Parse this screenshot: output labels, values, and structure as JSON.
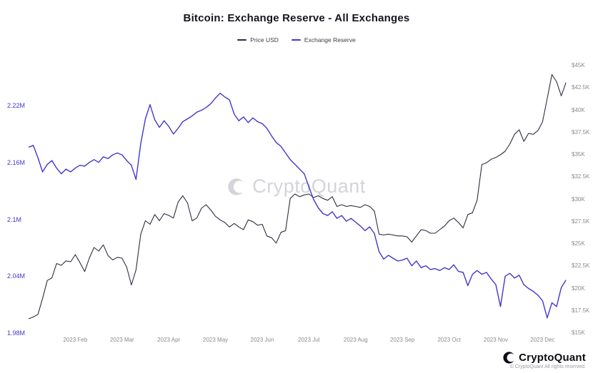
{
  "title": "Bitcoin: Exchange Reserve - All Exchanges",
  "legend": {
    "items": [
      {
        "label": "Price USD",
        "color": "#2e2e40"
      },
      {
        "label": "Exchange Reserve",
        "color": "#4338ca"
      }
    ]
  },
  "watermark": "CryptoQuant",
  "footer": {
    "brand": "CryptoQuant",
    "copyright": "© CryptoQuant All rights reserved."
  },
  "chart_data": {
    "type": "line",
    "title": "Bitcoin: Exchange Reserve - All Exchanges",
    "x_unit": "months since 2023-01-01",
    "x_start": 0,
    "x_step": 0.1,
    "x_tick_positions": [
      1,
      2,
      3,
      4,
      5,
      6,
      7,
      8,
      9,
      10,
      11
    ],
    "x_tick_labels": [
      "2023 Feb",
      "2023 Mar",
      "2023 Apr",
      "2023 May",
      "2023 Jun",
      "2023 Jul",
      "2023 Aug",
      "2023 Sep",
      "2023 Oct",
      "2023 Nov",
      "2023 Dec"
    ],
    "grid": false,
    "legend_position": "top",
    "left_axis": {
      "color": "#4338ca",
      "ticks": [
        "2.22M",
        "2.16M",
        "2.1M",
        "2.04M",
        "1.98M"
      ],
      "tick_values": [
        2.22,
        2.16,
        2.1,
        2.04,
        1.98
      ],
      "range": [
        1.978,
        2.268
      ],
      "unit": "BTC (millions)"
    },
    "right_axis": {
      "color": "#8b8b92",
      "ticks": [
        "$45K",
        "$42.5K",
        "$40K",
        "$37.5K",
        "$35K",
        "$32.5K",
        "$30K",
        "$27.5K",
        "$25K",
        "$22.5K",
        "$20K",
        "$17.5K",
        "$15K"
      ],
      "tick_values": [
        45,
        42.5,
        40,
        37.5,
        35,
        32.5,
        30,
        27.5,
        25,
        22.5,
        20,
        17.5,
        15
      ],
      "range": [
        14.8,
        45.6
      ],
      "unit": "USD (thousands)"
    },
    "series": [
      {
        "name": "Price USD",
        "axis": "right",
        "color": "#2e2e40",
        "values": [
          16.6,
          16.8,
          17.1,
          18.9,
          20.9,
          21.2,
          22.8,
          22.6,
          23.1,
          23.0,
          23.8,
          22.9,
          21.9,
          23.4,
          24.6,
          24.2,
          24.9,
          23.7,
          23.2,
          23.5,
          23.4,
          22.4,
          20.4,
          22.1,
          26.1,
          27.6,
          27.2,
          28.3,
          27.6,
          28.4,
          28.2,
          27.9,
          29.7,
          30.4,
          29.6,
          27.6,
          27.9,
          29.0,
          29.4,
          28.8,
          28.1,
          27.7,
          27.4,
          26.9,
          27.3,
          26.9,
          26.6,
          27.7,
          27.5,
          27.1,
          27.2,
          25.9,
          25.7,
          25.1,
          26.3,
          26.5,
          30.1,
          30.6,
          30.3,
          30.5,
          30.6,
          30.2,
          30.4,
          30.1,
          29.9,
          30.3,
          29.2,
          29.4,
          29.2,
          29.3,
          29.2,
          29.1,
          29.4,
          29.2,
          28.7,
          26.1,
          26.0,
          26.1,
          26.0,
          25.9,
          25.9,
          25.8,
          25.2,
          25.9,
          26.6,
          26.5,
          26.2,
          26.2,
          26.6,
          27.0,
          27.6,
          27.9,
          27.4,
          26.8,
          28.3,
          28.5,
          29.9,
          33.9,
          34.1,
          34.5,
          34.7,
          35.0,
          35.4,
          36.2,
          37.3,
          37.8,
          36.5,
          37.4,
          37.3,
          37.7,
          38.7,
          41.3,
          44.0,
          43.2,
          41.6,
          43.1
        ]
      },
      {
        "name": "Exchange Reserve",
        "axis": "left",
        "color": "#4338ca",
        "values": [
          2.176,
          2.178,
          2.165,
          2.15,
          2.158,
          2.162,
          2.154,
          2.148,
          2.153,
          2.15,
          2.154,
          2.157,
          2.156,
          2.16,
          2.163,
          2.16,
          2.166,
          2.164,
          2.168,
          2.17,
          2.168,
          2.162,
          2.157,
          2.142,
          2.18,
          2.206,
          2.221,
          2.205,
          2.197,
          2.204,
          2.198,
          2.19,
          2.196,
          2.203,
          2.206,
          2.209,
          2.213,
          2.215,
          2.218,
          2.222,
          2.228,
          2.233,
          2.229,
          2.226,
          2.211,
          2.204,
          2.208,
          2.202,
          2.207,
          2.203,
          2.201,
          2.196,
          2.188,
          2.181,
          2.177,
          2.17,
          2.163,
          2.158,
          2.153,
          2.148,
          2.134,
          2.121,
          2.112,
          2.106,
          2.104,
          2.108,
          2.101,
          2.104,
          2.098,
          2.101,
          2.097,
          2.093,
          2.088,
          2.092,
          2.085,
          2.066,
          2.058,
          2.062,
          2.059,
          2.056,
          2.057,
          2.059,
          2.051,
          2.056,
          2.049,
          2.051,
          2.047,
          2.048,
          2.046,
          2.049,
          2.047,
          2.052,
          2.045,
          2.044,
          2.03,
          2.042,
          2.046,
          2.042,
          2.044,
          2.037,
          2.031,
          2.008,
          2.04,
          2.043,
          2.038,
          2.041,
          2.031,
          2.027,
          2.024,
          2.02,
          2.014,
          1.996,
          2.012,
          2.008,
          2.028,
          2.036
        ]
      }
    ]
  }
}
